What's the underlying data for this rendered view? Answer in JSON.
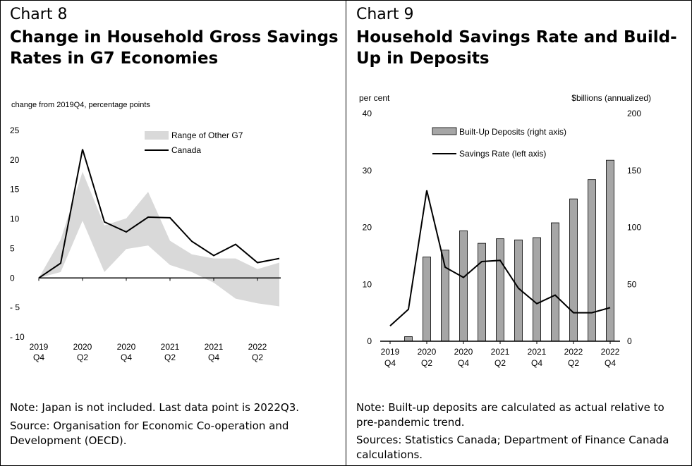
{
  "chart_data": [
    {
      "type": "area",
      "chart_label": "Chart 8",
      "title": "Change in Household Gross Savings Rates in G7 Economies",
      "ylabel": "change from 2019Q4, percentage points",
      "ylim": [
        -10,
        25
      ],
      "yticks": [
        "25",
        "20",
        "15",
        "10",
        "5",
        "0",
        "- 5",
        "- 10"
      ],
      "ytick_values": [
        25,
        20,
        15,
        10,
        5,
        0,
        -5,
        -10
      ],
      "x": [
        "2019Q4",
        "2020Q1",
        "2020Q2",
        "2020Q3",
        "2020Q4",
        "2021Q1",
        "2021Q2",
        "2021Q3",
        "2021Q4",
        "2022Q1",
        "2022Q2",
        "2022Q3"
      ],
      "xtick_labels": [
        {
          "year": "2019",
          "q": "Q4"
        },
        {
          "year": "2020",
          "q": "Q2"
        },
        {
          "year": "2020",
          "q": "Q4"
        },
        {
          "year": "2021",
          "q": "Q2"
        },
        {
          "year": "2021",
          "q": "Q4"
        },
        {
          "year": "2022",
          "q": "Q2"
        }
      ],
      "range_low": [
        0,
        1,
        9.7,
        1.0,
        4.9,
        5.5,
        2.2,
        1.0,
        -0.8,
        -3.5,
        -4.3,
        -4.8
      ],
      "range_high": [
        0,
        6.5,
        18.0,
        8.9,
        10.1,
        14.6,
        6.3,
        4.0,
        3.3,
        3.3,
        1.5,
        2.6
      ],
      "canada": [
        0,
        2.5,
        21.8,
        9.5,
        7.8,
        10.3,
        10.2,
        6.2,
        3.8,
        5.7,
        2.6,
        3.3
      ],
      "legend": [
        {
          "label": "Range of Other G7",
          "color": "#d9d9d9"
        },
        {
          "label": "Canada",
          "color": "#000000"
        }
      ],
      "note": "Note: Japan is not included. Last data point is 2022Q3.",
      "source": "Source: Organisation for Economic Co-operation and Development (OECD)."
    },
    {
      "type": "bar",
      "chart_label": "Chart 9",
      "title": "Household Savings Rate and Build-Up in Deposits",
      "ylabel_left": "per cent",
      "ylabel_right": "$billions (annualized)",
      "ylim_left": [
        0,
        40
      ],
      "ylim_right": [
        0,
        200
      ],
      "yticks_left": [
        "40",
        "30",
        "20",
        "10",
        "0"
      ],
      "yticks_right": [
        "200",
        "150",
        "100",
        "50",
        "0"
      ],
      "x": [
        "2019Q4",
        "2020Q1",
        "2020Q2",
        "2020Q3",
        "2020Q4",
        "2021Q1",
        "2021Q2",
        "2021Q3",
        "2021Q4",
        "2022Q1",
        "2022Q2",
        "2022Q3",
        "2022Q4"
      ],
      "xtick_labels": [
        {
          "year": "2019",
          "q": "Q4"
        },
        {
          "year": "2020",
          "q": "Q2"
        },
        {
          "year": "2020",
          "q": "Q4"
        },
        {
          "year": "2021",
          "q": "Q2"
        },
        {
          "year": "2021",
          "q": "Q4"
        },
        {
          "year": "2022",
          "q": "Q2"
        },
        {
          "year": "2022",
          "q": "Q4"
        }
      ],
      "series": [
        {
          "name": "Built-Up Deposits (right axis)",
          "axis": "right",
          "color": "#a6a6a6",
          "values": [
            null,
            4,
            74,
            80,
            97,
            86,
            90,
            89,
            91,
            104,
            125,
            142,
            159
          ]
        },
        {
          "name": "Savings Rate (left axis)",
          "axis": "left",
          "color": "#000000",
          "values": [
            2.7,
            5.6,
            26.5,
            13.0,
            11.2,
            14.0,
            14.2,
            9.3,
            6.6,
            8.1,
            5.0,
            5.0,
            5.9
          ]
        }
      ],
      "note": "Note: Built-up deposits are calculated as actual relative to pre-pandemic trend.",
      "source": "Sources: Statistics Canada; Department of Finance Canada calculations."
    }
  ]
}
